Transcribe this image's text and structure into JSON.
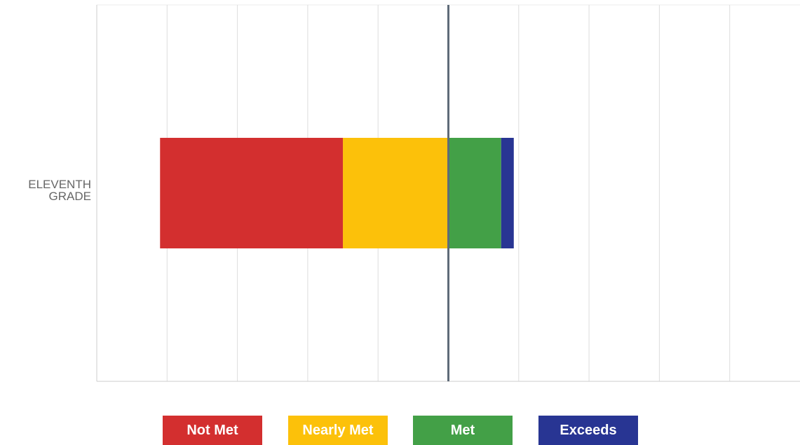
{
  "chart_data": {
    "type": "diverging_bar",
    "categories": [
      "ELEVENTH GRADE"
    ],
    "series": [
      {
        "name": "Not Met",
        "color": "#d32f2f",
        "values": [
          -26
        ]
      },
      {
        "name": "Nearly Met",
        "color": "#fcc10a",
        "values": [
          -15
        ]
      },
      {
        "name": "Met",
        "color": "#43a047",
        "values": [
          7.5
        ]
      },
      {
        "name": "Exceeds",
        "color": "#283593",
        "values": [
          1.8
        ]
      }
    ],
    "xlim": [
      -50,
      50
    ],
    "xticks": [
      -40,
      -30,
      -20,
      -10,
      0,
      10,
      20,
      30,
      40
    ],
    "grid": true
  }
}
